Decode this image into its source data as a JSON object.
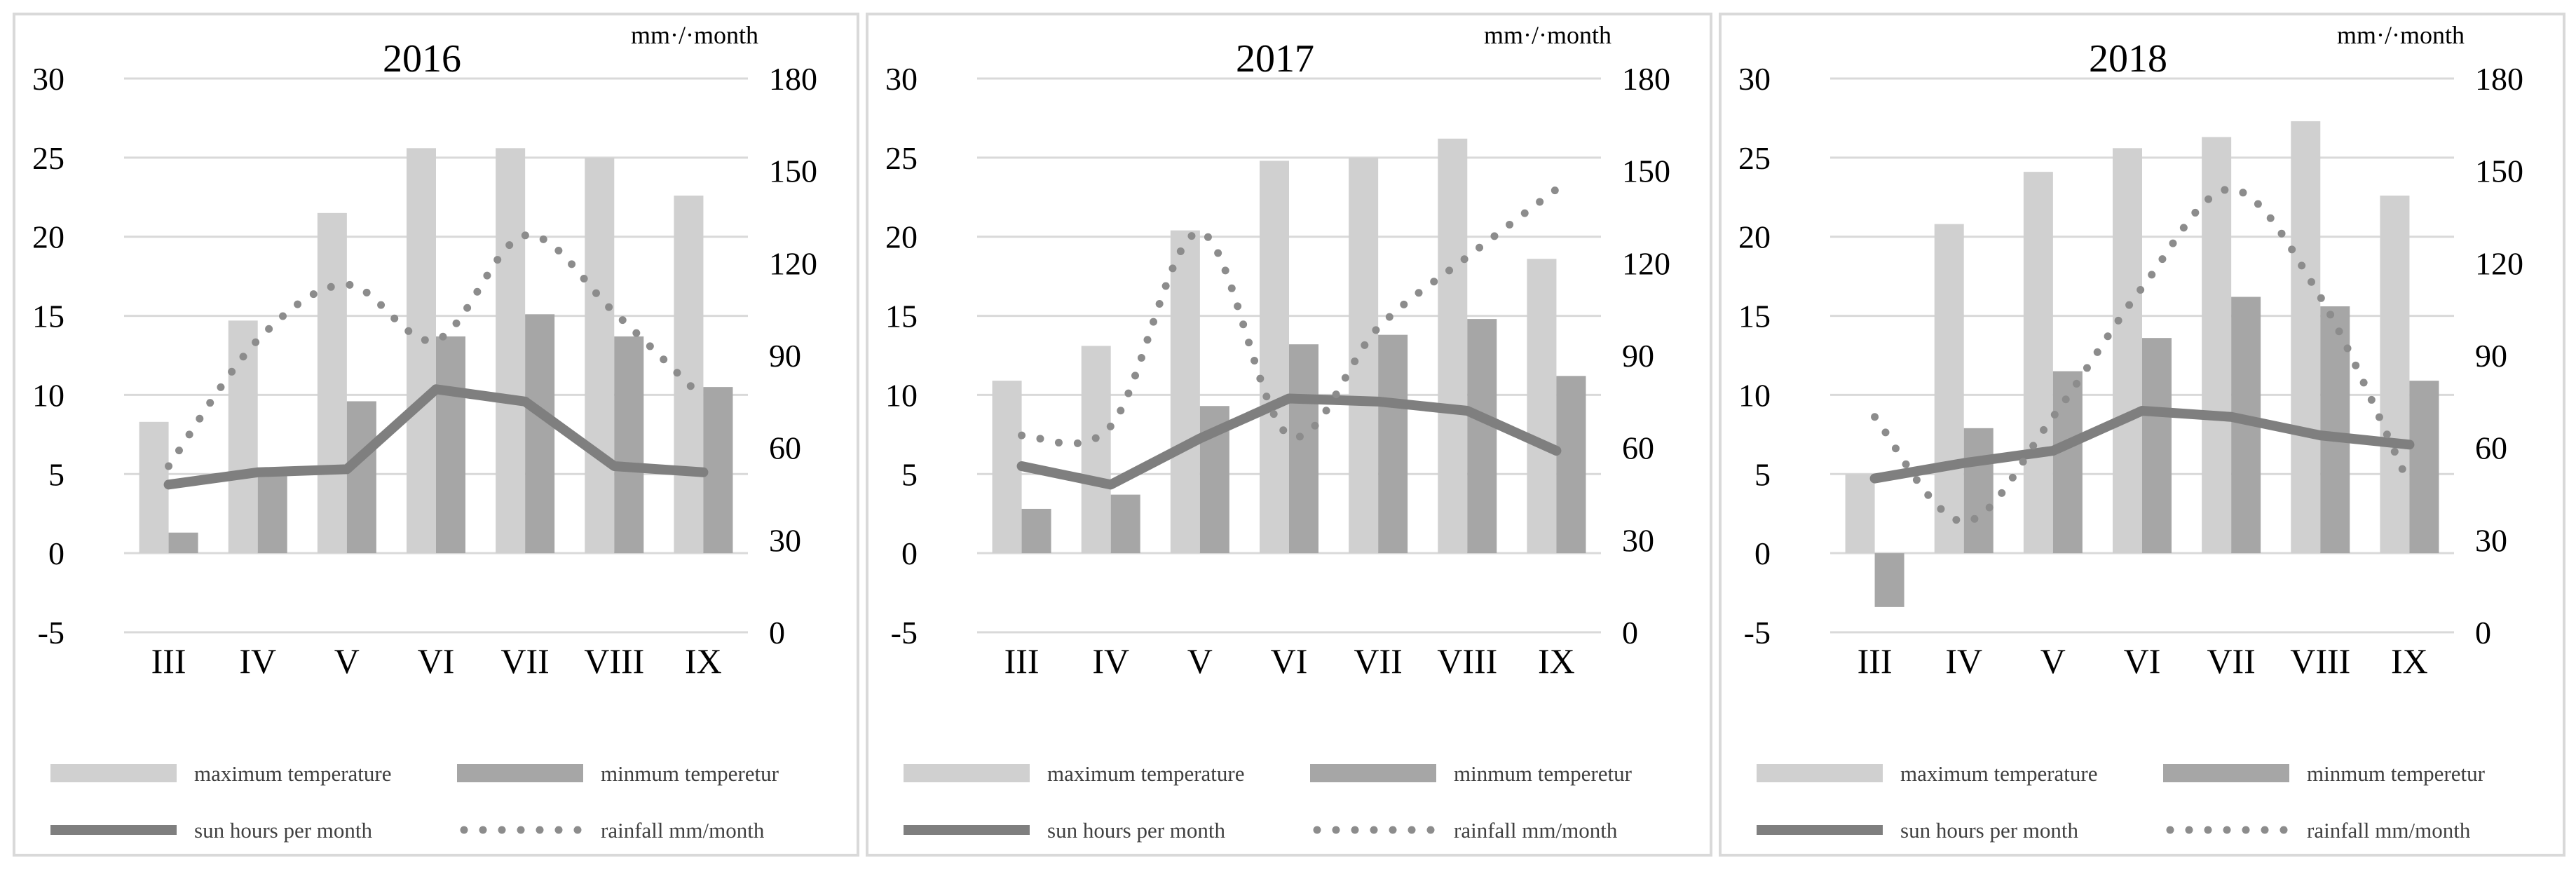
{
  "chart_data": [
    {
      "type": "bar",
      "title": "2016",
      "y2label": "mm·/·month",
      "categories": [
        "III",
        "IV",
        "V",
        "VI",
        "VII",
        "VIII",
        "IX"
      ],
      "ylim": [
        -5,
        30
      ],
      "yticks": [
        30,
        25,
        20,
        15,
        10,
        5,
        0,
        -5
      ],
      "y2lim": [
        0,
        180
      ],
      "y2ticks": [
        180,
        150,
        120,
        90,
        60,
        30,
        0
      ],
      "series": [
        {
          "name": "maximum temperature",
          "kind": "bar",
          "axis": "left",
          "values": [
            8.3,
            14.7,
            21.5,
            25.6,
            25.6,
            25.0,
            22.6
          ]
        },
        {
          "name": "minmum temperetur",
          "kind": "bar",
          "axis": "left",
          "values": [
            1.3,
            5.0,
            9.6,
            13.7,
            15.1,
            13.7,
            10.5
          ]
        },
        {
          "name": "sun hours per month",
          "kind": "line",
          "axis": "right",
          "values": [
            48,
            52,
            53,
            79,
            75,
            54,
            52
          ]
        },
        {
          "name": "rainfall mm/month",
          "kind": "dotted",
          "axis": "right",
          "values": [
            54,
            95,
            113,
            95,
            129,
            104,
            76
          ]
        }
      ],
      "colors": {
        "max": "#d0d0d0",
        "min": "#a6a6a6",
        "sun": "#7f7f7f",
        "rain": "#8c8c8c"
      },
      "grid": true,
      "legend": "bottom"
    },
    {
      "type": "bar",
      "title": "2017",
      "y2label": "mm·/·month",
      "categories": [
        "III",
        "IV",
        "V",
        "VI",
        "VII",
        "VIII",
        "IX"
      ],
      "ylim": [
        -5,
        30
      ],
      "yticks": [
        30,
        25,
        20,
        15,
        10,
        5,
        0,
        -5
      ],
      "y2lim": [
        0,
        180
      ],
      "y2ticks": [
        180,
        150,
        120,
        90,
        60,
        30,
        0
      ],
      "series": [
        {
          "name": "maximum temperature",
          "kind": "bar",
          "axis": "left",
          "values": [
            10.9,
            13.1,
            20.4,
            24.8,
            25.0,
            26.2,
            18.6
          ]
        },
        {
          "name": "minmum temperetur",
          "kind": "bar",
          "axis": "left",
          "values": [
            2.8,
            3.7,
            9.3,
            13.2,
            13.8,
            14.8,
            11.2
          ]
        },
        {
          "name": "sun hours per month",
          "kind": "line",
          "axis": "right",
          "values": [
            54,
            48,
            63,
            76,
            75,
            72,
            59
          ]
        },
        {
          "name": "rainfall mm/month",
          "kind": "dotted",
          "axis": "right",
          "values": [
            64,
            67,
            130,
            64,
            99,
            122,
            144
          ]
        }
      ],
      "colors": {
        "max": "#d0d0d0",
        "min": "#a6a6a6",
        "sun": "#7f7f7f",
        "rain": "#8c8c8c"
      },
      "grid": true,
      "legend": "bottom"
    },
    {
      "type": "bar",
      "title": "2018",
      "y2label": "mm·/·month",
      "categories": [
        "III",
        "IV",
        "V",
        "VI",
        "VII",
        "VIII",
        "IX"
      ],
      "ylim": [
        -5,
        30
      ],
      "yticks": [
        30,
        25,
        20,
        15,
        10,
        5,
        0,
        -5
      ],
      "y2lim": [
        0,
        180
      ],
      "y2ticks": [
        180,
        150,
        120,
        90,
        60,
        30,
        0
      ],
      "series": [
        {
          "name": "maximum temperature",
          "kind": "bar",
          "axis": "left",
          "values": [
            5.0,
            20.8,
            24.1,
            25.6,
            26.3,
            27.3,
            22.6
          ]
        },
        {
          "name": "minmum temperetur",
          "kind": "bar",
          "axis": "left",
          "values": [
            -3.4,
            7.9,
            11.5,
            13.6,
            16.2,
            15.6,
            10.9
          ]
        },
        {
          "name": "sun hours per month",
          "kind": "line",
          "axis": "right",
          "values": [
            50,
            55,
            59,
            72,
            70,
            64,
            61
          ]
        },
        {
          "name": "rainfall mm/month",
          "kind": "dotted",
          "axis": "right",
          "values": [
            70,
            36,
            70,
            112,
            144,
            109,
            48
          ]
        }
      ],
      "colors": {
        "max": "#d0d0d0",
        "min": "#a6a6a6",
        "sun": "#7f7f7f",
        "rain": "#8c8c8c"
      },
      "grid": true,
      "legend": "bottom"
    }
  ]
}
